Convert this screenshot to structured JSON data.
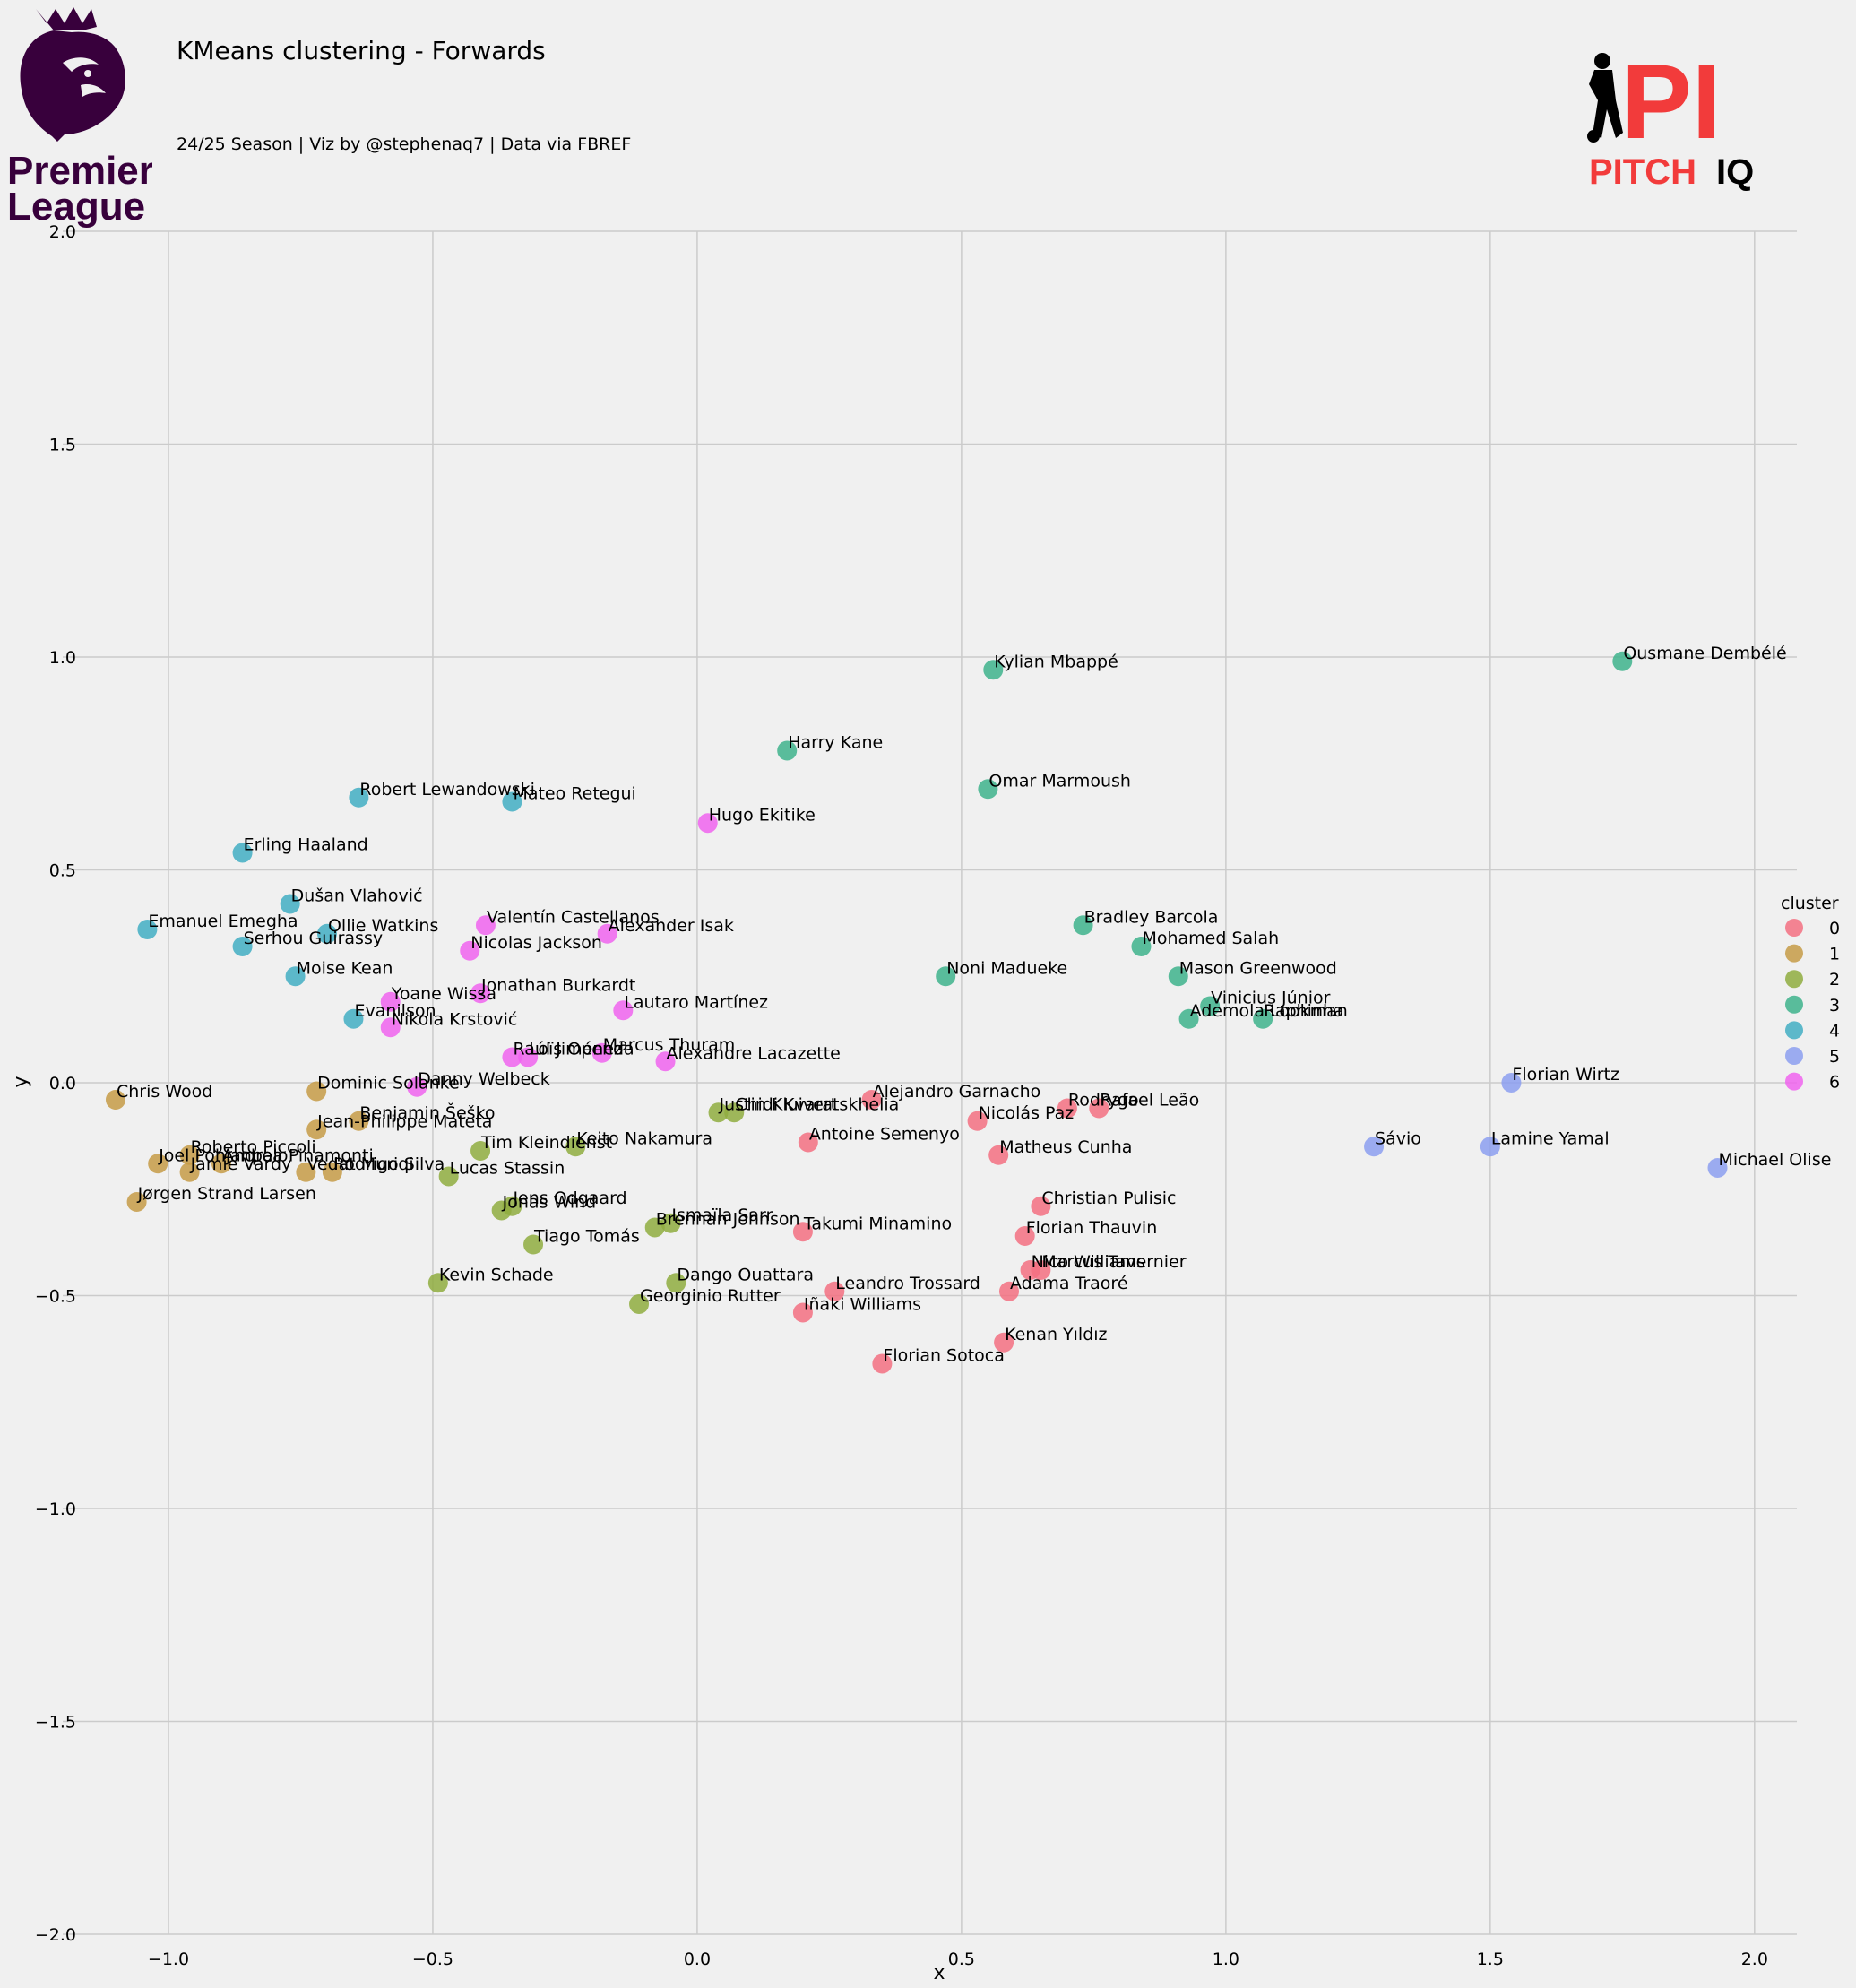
{
  "header": {
    "title": "KMeans clustering - Forwards",
    "subtitle": "24/25 Season | Viz by @stephenaq7 | Data via FBREF"
  },
  "logos": {
    "left": {
      "line1": "Premier",
      "line2": "League",
      "color": "#38003c"
    },
    "right": {
      "mark": "PI",
      "word1": "PITCH",
      "word2": "IQ",
      "accent": "#f23b3b"
    }
  },
  "chart_data": {
    "type": "scatter",
    "xlabel": "x",
    "ylabel": "y",
    "xlim": [
      -1.2,
      2.08
    ],
    "ylim": [
      -2.0,
      2.0
    ],
    "xticks": [
      -1.0,
      -0.5,
      0.0,
      0.5,
      1.0,
      1.5,
      2.0
    ],
    "yticks": [
      -2.0,
      -1.5,
      -1.0,
      -0.5,
      0.0,
      0.5,
      1.0,
      1.5,
      2.0
    ],
    "grid": true,
    "legend": {
      "title": "cluster",
      "placement": "right",
      "items": [
        "0",
        "1",
        "2",
        "3",
        "4",
        "5",
        "6"
      ]
    },
    "cluster_colors": [
      "#f37081",
      "#c59b47",
      "#8fad3f",
      "#3eb38c",
      "#42aec3",
      "#8c9ff0",
      "#f064ef"
    ],
    "points": [
      {
        "name": "Alejandro Garnacho",
        "cluster": 0,
        "x": 0.33,
        "y": -0.04
      },
      {
        "name": "Rodrygo",
        "cluster": 0,
        "x": 0.7,
        "y": -0.06
      },
      {
        "name": "Rafael Leão",
        "cluster": 0,
        "x": 0.76,
        "y": -0.06
      },
      {
        "name": "Nicolás Paz",
        "cluster": 0,
        "x": 0.53,
        "y": -0.09
      },
      {
        "name": "Antoine Semenyo",
        "cluster": 0,
        "x": 0.21,
        "y": -0.14
      },
      {
        "name": "Matheus Cunha",
        "cluster": 0,
        "x": 0.57,
        "y": -0.17
      },
      {
        "name": "Christian Pulisic",
        "cluster": 0,
        "x": 0.65,
        "y": -0.29
      },
      {
        "name": "Takumi Minamino",
        "cluster": 0,
        "x": 0.2,
        "y": -0.35
      },
      {
        "name": "Florian Thauvin",
        "cluster": 0,
        "x": 0.62,
        "y": -0.36
      },
      {
        "name": "Nico Williams",
        "cluster": 0,
        "x": 0.63,
        "y": -0.44
      },
      {
        "name": "Marcus Tavernier",
        "cluster": 0,
        "x": 0.65,
        "y": -0.44
      },
      {
        "name": "Adama Traoré",
        "cluster": 0,
        "x": 0.59,
        "y": -0.49
      },
      {
        "name": "Leandro Trossard",
        "cluster": 0,
        "x": 0.26,
        "y": -0.49
      },
      {
        "name": "Iñaki Williams",
        "cluster": 0,
        "x": 0.2,
        "y": -0.54
      },
      {
        "name": "Kenan Yıldız",
        "cluster": 0,
        "x": 0.58,
        "y": -0.61
      },
      {
        "name": "Florian Sotoca",
        "cluster": 0,
        "x": 0.35,
        "y": -0.66
      },
      {
        "name": "Chris Wood",
        "cluster": 1,
        "x": -1.1,
        "y": -0.04
      },
      {
        "name": "Dominic Solanke",
        "cluster": 1,
        "x": -0.72,
        "y": -0.02
      },
      {
        "name": "Benjamin Šeško",
        "cluster": 1,
        "x": -0.64,
        "y": -0.09
      },
      {
        "name": "Jean-Philippe Mateta",
        "cluster": 1,
        "x": -0.72,
        "y": -0.11
      },
      {
        "name": "Roberto Piccoli",
        "cluster": 1,
        "x": -0.96,
        "y": -0.17
      },
      {
        "name": "Joel Pohjanpalo",
        "cluster": 1,
        "x": -1.02,
        "y": -0.19
      },
      {
        "name": "Andrea Pinamonti",
        "cluster": 1,
        "x": -0.9,
        "y": -0.19
      },
      {
        "name": "Jamie Vardy",
        "cluster": 1,
        "x": -0.96,
        "y": -0.21
      },
      {
        "name": "Vedat Muriqi",
        "cluster": 1,
        "x": -0.74,
        "y": -0.21
      },
      {
        "name": "Rodrigo Silva",
        "cluster": 1,
        "x": -0.69,
        "y": -0.21
      },
      {
        "name": "Jørgen Strand Larsen",
        "cluster": 1,
        "x": -1.06,
        "y": -0.28
      },
      {
        "name": "Justin Kluivert",
        "cluster": 2,
        "x": 0.04,
        "y": -0.07
      },
      {
        "name": "Chidi Kvaratskhelia",
        "cluster": 2,
        "x": 0.07,
        "y": -0.07
      },
      {
        "name": "Keito Nakamura",
        "cluster": 2,
        "x": -0.23,
        "y": -0.15
      },
      {
        "name": "Tim Kleindienst",
        "cluster": 2,
        "x": -0.41,
        "y": -0.16
      },
      {
        "name": "Lucas Stassin",
        "cluster": 2,
        "x": -0.47,
        "y": -0.22
      },
      {
        "name": "Jens Odgaard",
        "cluster": 2,
        "x": -0.35,
        "y": -0.29
      },
      {
        "name": "Jonas Wind",
        "cluster": 2,
        "x": -0.37,
        "y": -0.3
      },
      {
        "name": "Ismaïla Sarr",
        "cluster": 2,
        "x": -0.05,
        "y": -0.33
      },
      {
        "name": "Brennan Johnson",
        "cluster": 2,
        "x": -0.08,
        "y": -0.34
      },
      {
        "name": "Tiago Tomás",
        "cluster": 2,
        "x": -0.31,
        "y": -0.38
      },
      {
        "name": "Kevin Schade",
        "cluster": 2,
        "x": -0.49,
        "y": -0.47
      },
      {
        "name": "Dango Ouattara",
        "cluster": 2,
        "x": -0.04,
        "y": -0.47
      },
      {
        "name": "Georginio Rutter",
        "cluster": 2,
        "x": -0.11,
        "y": -0.52
      },
      {
        "name": "Ousmane Dembélé",
        "cluster": 3,
        "x": 1.75,
        "y": 0.99
      },
      {
        "name": "Kylian Mbappé",
        "cluster": 3,
        "x": 0.56,
        "y": 0.97
      },
      {
        "name": "Harry Kane",
        "cluster": 3,
        "x": 0.17,
        "y": 0.78
      },
      {
        "name": "Omar Marmoush",
        "cluster": 3,
        "x": 0.55,
        "y": 0.69
      },
      {
        "name": "Bradley Barcola",
        "cluster": 3,
        "x": 0.73,
        "y": 0.37
      },
      {
        "name": "Mohamed Salah",
        "cluster": 3,
        "x": 0.84,
        "y": 0.32
      },
      {
        "name": "Noni Madueke",
        "cluster": 3,
        "x": 0.47,
        "y": 0.25
      },
      {
        "name": "Mason Greenwood",
        "cluster": 3,
        "x": 0.91,
        "y": 0.25
      },
      {
        "name": "Vinicius Júnior",
        "cluster": 3,
        "x": 0.97,
        "y": 0.18
      },
      {
        "name": "Ademola Lookman",
        "cluster": 3,
        "x": 0.93,
        "y": 0.15
      },
      {
        "name": "Raphinha",
        "cluster": 3,
        "x": 1.07,
        "y": 0.15
      },
      {
        "name": "Robert Lewandowski",
        "cluster": 4,
        "x": -0.64,
        "y": 0.67
      },
      {
        "name": "Mateo Retegui",
        "cluster": 4,
        "x": -0.35,
        "y": 0.66
      },
      {
        "name": "Erling Haaland",
        "cluster": 4,
        "x": -0.86,
        "y": 0.54
      },
      {
        "name": "Dušan Vlahović",
        "cluster": 4,
        "x": -0.77,
        "y": 0.42
      },
      {
        "name": "Emanuel Emegha",
        "cluster": 4,
        "x": -1.04,
        "y": 0.36
      },
      {
        "name": "Ollie Watkins",
        "cluster": 4,
        "x": -0.7,
        "y": 0.35
      },
      {
        "name": "Serhou Guirassy",
        "cluster": 4,
        "x": -0.86,
        "y": 0.32
      },
      {
        "name": "Moise Kean",
        "cluster": 4,
        "x": -0.76,
        "y": 0.25
      },
      {
        "name": "Evanilson",
        "cluster": 4,
        "x": -0.65,
        "y": 0.15
      },
      {
        "name": "Florian Wirtz",
        "cluster": 5,
        "x": 1.54,
        "y": 0.0
      },
      {
        "name": "Sávio",
        "cluster": 5,
        "x": 1.28,
        "y": -0.15
      },
      {
        "name": "Lamine Yamal",
        "cluster": 5,
        "x": 1.5,
        "y": -0.15
      },
      {
        "name": "Michael Olise",
        "cluster": 5,
        "x": 1.93,
        "y": -0.2
      },
      {
        "name": "Hugo Ekitike",
        "cluster": 6,
        "x": 0.02,
        "y": 0.61
      },
      {
        "name": "Valentín Castellanos",
        "cluster": 6,
        "x": -0.4,
        "y": 0.37
      },
      {
        "name": "Alexander Isak",
        "cluster": 6,
        "x": -0.17,
        "y": 0.35
      },
      {
        "name": "Nicolas Jackson",
        "cluster": 6,
        "x": -0.43,
        "y": 0.31
      },
      {
        "name": "Jonathan Burkardt",
        "cluster": 6,
        "x": -0.41,
        "y": 0.21
      },
      {
        "name": "Yoane Wissa",
        "cluster": 6,
        "x": -0.58,
        "y": 0.19
      },
      {
        "name": "Lautaro Martínez",
        "cluster": 6,
        "x": -0.14,
        "y": 0.17
      },
      {
        "name": "Nikola Krstović",
        "cluster": 6,
        "x": -0.58,
        "y": 0.13
      },
      {
        "name": "Marcus Thuram",
        "cluster": 6,
        "x": -0.18,
        "y": 0.07
      },
      {
        "name": "Raúl Jiménez",
        "cluster": 6,
        "x": -0.35,
        "y": 0.06
      },
      {
        "name": "Loïs Openda",
        "cluster": 6,
        "x": -0.32,
        "y": 0.06
      },
      {
        "name": "Alexandre Lacazette",
        "cluster": 6,
        "x": -0.06,
        "y": 0.05
      },
      {
        "name": "Danny Welbeck",
        "cluster": 6,
        "x": -0.53,
        "y": -0.01
      }
    ]
  }
}
